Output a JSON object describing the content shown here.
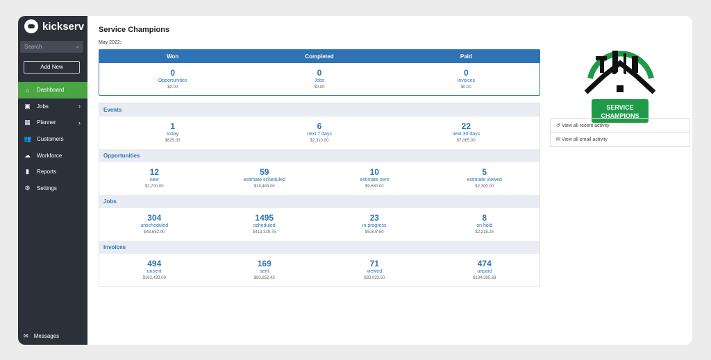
{
  "brand": "kickserv",
  "sidebar": {
    "search_placeholder": "Search",
    "add_new": "Add New",
    "items": [
      {
        "label": "Dashboard",
        "icon": "⌂",
        "chev": false
      },
      {
        "label": "Jobs",
        "icon": "▣",
        "chev": true
      },
      {
        "label": "Planner",
        "icon": "▦",
        "chev": true
      },
      {
        "label": "Customers",
        "icon": "👥",
        "chev": false
      },
      {
        "label": "Workforce",
        "icon": "☁",
        "chev": false
      },
      {
        "label": "Reports",
        "icon": "▮",
        "chev": false
      },
      {
        "label": "Settings",
        "icon": "⚙",
        "chev": false
      }
    ],
    "messages": "Messages"
  },
  "page": {
    "title": "Service Champions",
    "period": "May 2022:"
  },
  "summary": {
    "headers": [
      "Won",
      "Completed",
      "Paid"
    ],
    "stats": [
      {
        "num": "0",
        "label": "Opportunities",
        "amt": "$0.00"
      },
      {
        "num": "0",
        "label": "Jobs",
        "amt": "$0.00"
      },
      {
        "num": "0",
        "label": "Invoices",
        "amt": "$0.00"
      }
    ]
  },
  "sections": [
    {
      "title": "Events",
      "stats": [
        {
          "num": "1",
          "label": "today",
          "amt": "$625.00"
        },
        {
          "num": "6",
          "label": "next 7 days",
          "amt": "$2,310.00"
        },
        {
          "num": "22",
          "label": "next 30 days",
          "amt": "$7,065.00"
        }
      ]
    },
    {
      "title": "Opportunities",
      "stats": [
        {
          "num": "12",
          "label": "new",
          "amt": "$2,700.00"
        },
        {
          "num": "59",
          "label": "estimate scheduled",
          "amt": "$18,483.00"
        },
        {
          "num": "10",
          "label": "estimate sent",
          "amt": "$9,680.00"
        },
        {
          "num": "5",
          "label": "estimate viewed",
          "amt": "$2,300.00"
        }
      ]
    },
    {
      "title": "Jobs",
      "stats": [
        {
          "num": "304",
          "label": "unscheduled",
          "amt": "$48,652.00"
        },
        {
          "num": "1495",
          "label": "scheduled",
          "amt": "$413,339.75"
        },
        {
          "num": "23",
          "label": "in progress",
          "amt": "$5,507.50"
        },
        {
          "num": "8",
          "label": "on hold",
          "amt": "$2,218.25"
        }
      ]
    },
    {
      "title": "Invoices",
      "stats": [
        {
          "num": "494",
          "label": "unsent",
          "amt": "$162,439.00"
        },
        {
          "num": "169",
          "label": "sent",
          "amt": "$83,852.43"
        },
        {
          "num": "71",
          "label": "viewed",
          "amt": "$33,032.50"
        },
        {
          "num": "474",
          "label": "unpaid",
          "amt": "$184,385.68"
        }
      ]
    }
  ],
  "company_logo": {
    "line1": "SERVICE",
    "line2": "CHAMPIONS"
  },
  "links": {
    "recent": "View all recent activity",
    "email": "View all email activity"
  },
  "colors": {
    "accent": "#2f73b5",
    "sidebar": "#2b3039",
    "active": "#4aa543"
  }
}
